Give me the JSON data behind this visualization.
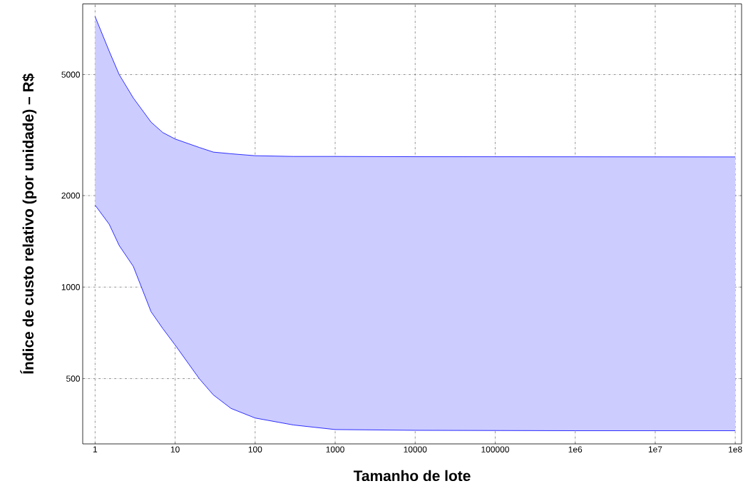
{
  "chart_data": {
    "type": "line",
    "xlabel": "Tamanho de lote",
    "ylabel": "Índice de custo relativo  (por unidade) – R$",
    "x": [
      1,
      1.5,
      2,
      3,
      5,
      7,
      10,
      20,
      30,
      50,
      100,
      300,
      1000,
      10000,
      1000000,
      100000000
    ],
    "series": [
      {
        "color": "#0000ff",
        "values": [
          7760,
          5970,
          5000,
          4190,
          3490,
          3225,
          3070,
          2880,
          2780,
          2745,
          2705,
          2690,
          2690,
          2685,
          2683,
          2680
        ],
        "upper": [
          7760,
          5970,
          5000,
          4190,
          3490,
          3225,
          3070,
          2880,
          2780,
          2745,
          2705,
          2690,
          2690,
          2685,
          2683,
          2680
        ],
        "lower": [
          1860,
          1610,
          1370,
          1170,
          830,
          731,
          645,
          500,
          442,
          399,
          371,
          352,
          340,
          338,
          337,
          337
        ]
      },
      {
        "color": "#0000ff",
        "values": [
          1860,
          1610,
          1370,
          1170,
          830,
          731,
          645,
          500,
          442,
          399,
          371,
          352,
          340,
          338,
          337,
          337
        ]
      }
    ],
    "log": "xy",
    "grid": true,
    "xlim": [
      0.7,
      120000000
    ],
    "ylim": [
      305,
      8540
    ],
    "xticks": [
      1,
      10,
      100,
      1000,
      10000,
      100000,
      {
        "value": 1000000,
        "label": "1e6"
      },
      {
        "value": 10000000,
        "label": "1e7"
      },
      {
        "value": 100000000,
        "label": "1e8"
      }
    ],
    "yticks": [
      500,
      1000,
      2000,
      5000
    ]
  }
}
